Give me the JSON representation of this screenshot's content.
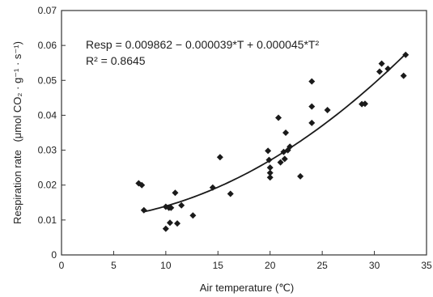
{
  "chart_data": {
    "type": "scatter",
    "title": "",
    "xlabel": "Air temperature (℃)",
    "ylabel_prefix": "Respiration rate",
    "ylabel_units": "(μmol CO₂ · g⁻¹ · s⁻¹)",
    "xlim": [
      0,
      35
    ],
    "ylim": [
      0,
      0.07
    ],
    "xticks": [
      "0",
      "5",
      "10",
      "15",
      "20",
      "25",
      "30",
      "35"
    ],
    "yticks": [
      "0",
      "0.01",
      "0.02",
      "0.03",
      "0.04",
      "0.05",
      "0.06",
      "0.07"
    ],
    "grid": false,
    "legend": "none",
    "annotation": {
      "equation": "Resp = 0.009862 − 0.000039*T + 0.000045*T²",
      "r_squared": "R² = 0.8645"
    },
    "fit": {
      "a": 0.009862,
      "b": -3.9e-05,
      "c": 4.5e-05,
      "x_range": [
        7.8,
        33
      ]
    },
    "points": [
      {
        "x": 7.4,
        "y": 0.0205
      },
      {
        "x": 7.7,
        "y": 0.02
      },
      {
        "x": 7.9,
        "y": 0.0128
      },
      {
        "x": 10.0,
        "y": 0.0075
      },
      {
        "x": 10.0,
        "y": 0.0138
      },
      {
        "x": 10.3,
        "y": 0.0135
      },
      {
        "x": 10.5,
        "y": 0.0135
      },
      {
        "x": 10.4,
        "y": 0.0092
      },
      {
        "x": 10.9,
        "y": 0.0178
      },
      {
        "x": 11.1,
        "y": 0.009
      },
      {
        "x": 11.5,
        "y": 0.0142
      },
      {
        "x": 12.6,
        "y": 0.0113
      },
      {
        "x": 14.5,
        "y": 0.0193
      },
      {
        "x": 15.2,
        "y": 0.028
      },
      {
        "x": 16.2,
        "y": 0.0175
      },
      {
        "x": 19.8,
        "y": 0.0298
      },
      {
        "x": 19.9,
        "y": 0.0272
      },
      {
        "x": 20.0,
        "y": 0.025
      },
      {
        "x": 20.0,
        "y": 0.0235
      },
      {
        "x": 20.0,
        "y": 0.0222
      },
      {
        "x": 20.8,
        "y": 0.0393
      },
      {
        "x": 21.0,
        "y": 0.0265
      },
      {
        "x": 21.3,
        "y": 0.0295
      },
      {
        "x": 21.4,
        "y": 0.0275
      },
      {
        "x": 21.5,
        "y": 0.035
      },
      {
        "x": 21.7,
        "y": 0.03
      },
      {
        "x": 21.9,
        "y": 0.031
      },
      {
        "x": 22.9,
        "y": 0.0225
      },
      {
        "x": 24.0,
        "y": 0.0497
      },
      {
        "x": 24.0,
        "y": 0.0425
      },
      {
        "x": 24.0,
        "y": 0.0378
      },
      {
        "x": 25.5,
        "y": 0.0415
      },
      {
        "x": 28.8,
        "y": 0.0432
      },
      {
        "x": 29.1,
        "y": 0.0433
      },
      {
        "x": 30.5,
        "y": 0.0525
      },
      {
        "x": 30.7,
        "y": 0.0548
      },
      {
        "x": 31.3,
        "y": 0.0533
      },
      {
        "x": 32.8,
        "y": 0.0513
      },
      {
        "x": 33.0,
        "y": 0.0573
      }
    ]
  }
}
